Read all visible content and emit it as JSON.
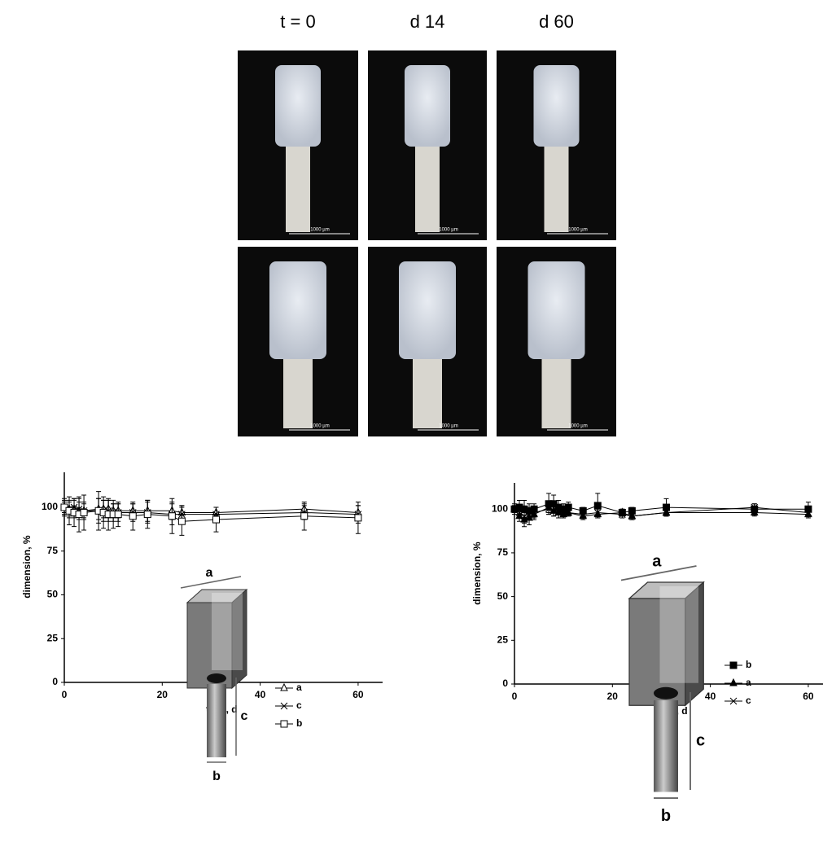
{
  "photos": {
    "columns": [
      "t = 0",
      "d 14",
      "d 60"
    ],
    "scale_bar": "1000 µm"
  },
  "chart_data": [
    {
      "type": "line",
      "xlabel": "time, d",
      "ylabel": "dimension, %",
      "x": [
        0,
        1,
        2,
        3,
        4,
        7,
        8,
        9,
        10,
        11,
        14,
        17,
        22,
        24,
        31,
        49,
        60
      ],
      "xlim": [
        0,
        65
      ],
      "xticks": [
        0,
        20,
        40,
        60
      ],
      "ylim": [
        0,
        120
      ],
      "yticks": [
        0,
        25,
        50,
        75,
        100
      ],
      "diagram_labels": [
        "a",
        "c",
        "b"
      ],
      "series": [
        {
          "name": "a",
          "color": "#000000",
          "marker": "triangle-open",
          "values": [
            100,
            99,
            99,
            98,
            98,
            99,
            99,
            99,
            98,
            98,
            98,
            98,
            98,
            97,
            97,
            99,
            97
          ],
          "errors": [
            3,
            4,
            5,
            5,
            4,
            6,
            5,
            5,
            4,
            4,
            4,
            6,
            5,
            4,
            3,
            3,
            4
          ]
        },
        {
          "name": "c",
          "color": "#000000",
          "marker": "cross",
          "values": [
            100,
            99,
            100,
            99,
            98,
            98,
            98,
            98,
            97,
            97,
            97,
            97,
            96,
            96,
            96,
            97,
            96
          ],
          "errors": [
            4,
            5,
            5,
            6,
            5,
            7,
            6,
            6,
            5,
            5,
            5,
            6,
            6,
            5,
            4,
            4,
            5
          ]
        },
        {
          "name": "b",
          "color": "#000000",
          "marker": "square-open",
          "values": [
            100,
            98,
            97,
            96,
            97,
            98,
            97,
            96,
            96,
            96,
            95,
            96,
            95,
            92,
            93,
            95,
            94
          ],
          "errors": [
            5,
            8,
            8,
            10,
            10,
            11,
            9,
            9,
            8,
            7,
            8,
            8,
            10,
            8,
            7,
            8,
            9
          ]
        }
      ]
    },
    {
      "type": "line",
      "xlabel": "time, d",
      "ylabel": "dimension, %",
      "x": [
        0,
        1,
        2,
        3,
        4,
        7,
        8,
        9,
        10,
        11,
        14,
        17,
        22,
        24,
        31,
        49,
        60
      ],
      "xlim": [
        0,
        65
      ],
      "xticks": [
        0,
        20,
        40,
        60
      ],
      "ylim": [
        0,
        115
      ],
      "yticks": [
        0,
        25,
        50,
        75,
        100
      ],
      "diagram_labels": [
        "a",
        "c",
        "b"
      ],
      "series": [
        {
          "name": "b",
          "color": "#000000",
          "marker": "square",
          "values": [
            100,
            101,
            100,
            99,
            100,
            103,
            103,
            101,
            100,
            101,
            99,
            102,
            98,
            99,
            101,
            100,
            100
          ],
          "errors": [
            3,
            4,
            5,
            4,
            3,
            6,
            5,
            4,
            3,
            3,
            2,
            7,
            2,
            2,
            5,
            3,
            4
          ]
        },
        {
          "name": "a",
          "color": "#000000",
          "marker": "triangle",
          "values": [
            100,
            96,
            94,
            95,
            97,
            101,
            99,
            98,
            97,
            98,
            96,
            97,
            98,
            96,
            98,
            98,
            97
          ],
          "errors": [
            2,
            3,
            4,
            4,
            3,
            3,
            3,
            3,
            2,
            2,
            2,
            2,
            2,
            2,
            2,
            2,
            2
          ]
        },
        {
          "name": "c",
          "color": "#000000",
          "marker": "cross",
          "values": [
            100,
            98,
            96,
            97,
            98,
            100,
            99,
            98,
            99,
            98,
            97,
            98,
            97,
            96,
            98,
            101,
            98
          ],
          "errors": [
            2,
            3,
            4,
            3,
            3,
            3,
            3,
            3,
            2,
            2,
            2,
            2,
            2,
            2,
            2,
            2,
            2
          ]
        }
      ]
    }
  ]
}
